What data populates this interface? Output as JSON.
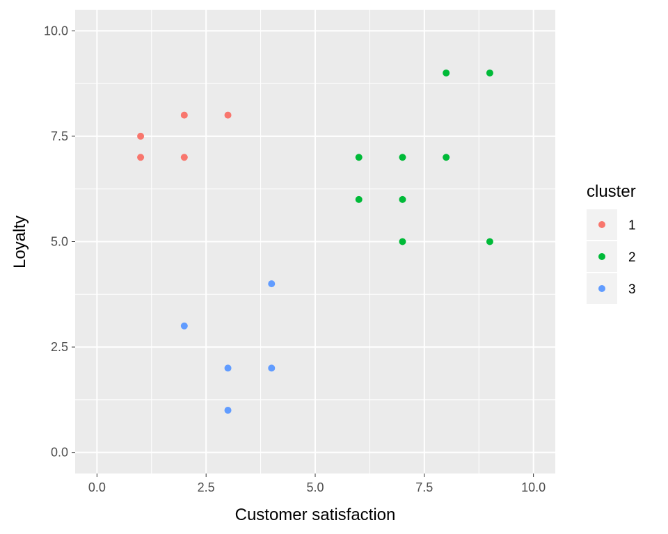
{
  "chart_data": {
    "type": "scatter",
    "xlabel": "Customer satisfaction",
    "ylabel": "Loyalty",
    "xlim": [
      -0.5,
      10.5
    ],
    "ylim": [
      -0.5,
      10.5
    ],
    "x_ticks": [
      0,
      2.5,
      5,
      7.5,
      10
    ],
    "x_tick_labels": [
      "0.0",
      "2.5",
      "5.0",
      "7.5",
      "10.0"
    ],
    "y_ticks": [
      0,
      2.5,
      5,
      7.5,
      10
    ],
    "y_tick_labels": [
      "0.0",
      "2.5",
      "5.0",
      "7.5",
      "10.0"
    ],
    "grid": true,
    "legend": {
      "title": "cluster",
      "position": "right"
    },
    "series": [
      {
        "name": "1",
        "color": "#F8766D",
        "points": [
          [
            1,
            7.5
          ],
          [
            1,
            7
          ],
          [
            2,
            8
          ],
          [
            2,
            7
          ],
          [
            3,
            8
          ]
        ]
      },
      {
        "name": "2",
        "color": "#00BA38",
        "points": [
          [
            6,
            7
          ],
          [
            6,
            6
          ],
          [
            7,
            7
          ],
          [
            7,
            6
          ],
          [
            7,
            5
          ],
          [
            8,
            9
          ],
          [
            8,
            7
          ],
          [
            9,
            9
          ],
          [
            9,
            5
          ]
        ]
      },
      {
        "name": "3",
        "color": "#619CFF",
        "points": [
          [
            2,
            3
          ],
          [
            3,
            2
          ],
          [
            3,
            1
          ],
          [
            4,
            4
          ],
          [
            4,
            2
          ]
        ]
      }
    ]
  },
  "colors": {
    "panel_background": "#EBEBEB",
    "grid_line": "#FFFFFF",
    "tick_text": "#4D4D4D",
    "legend_key_background": "#F2F2F2"
  }
}
